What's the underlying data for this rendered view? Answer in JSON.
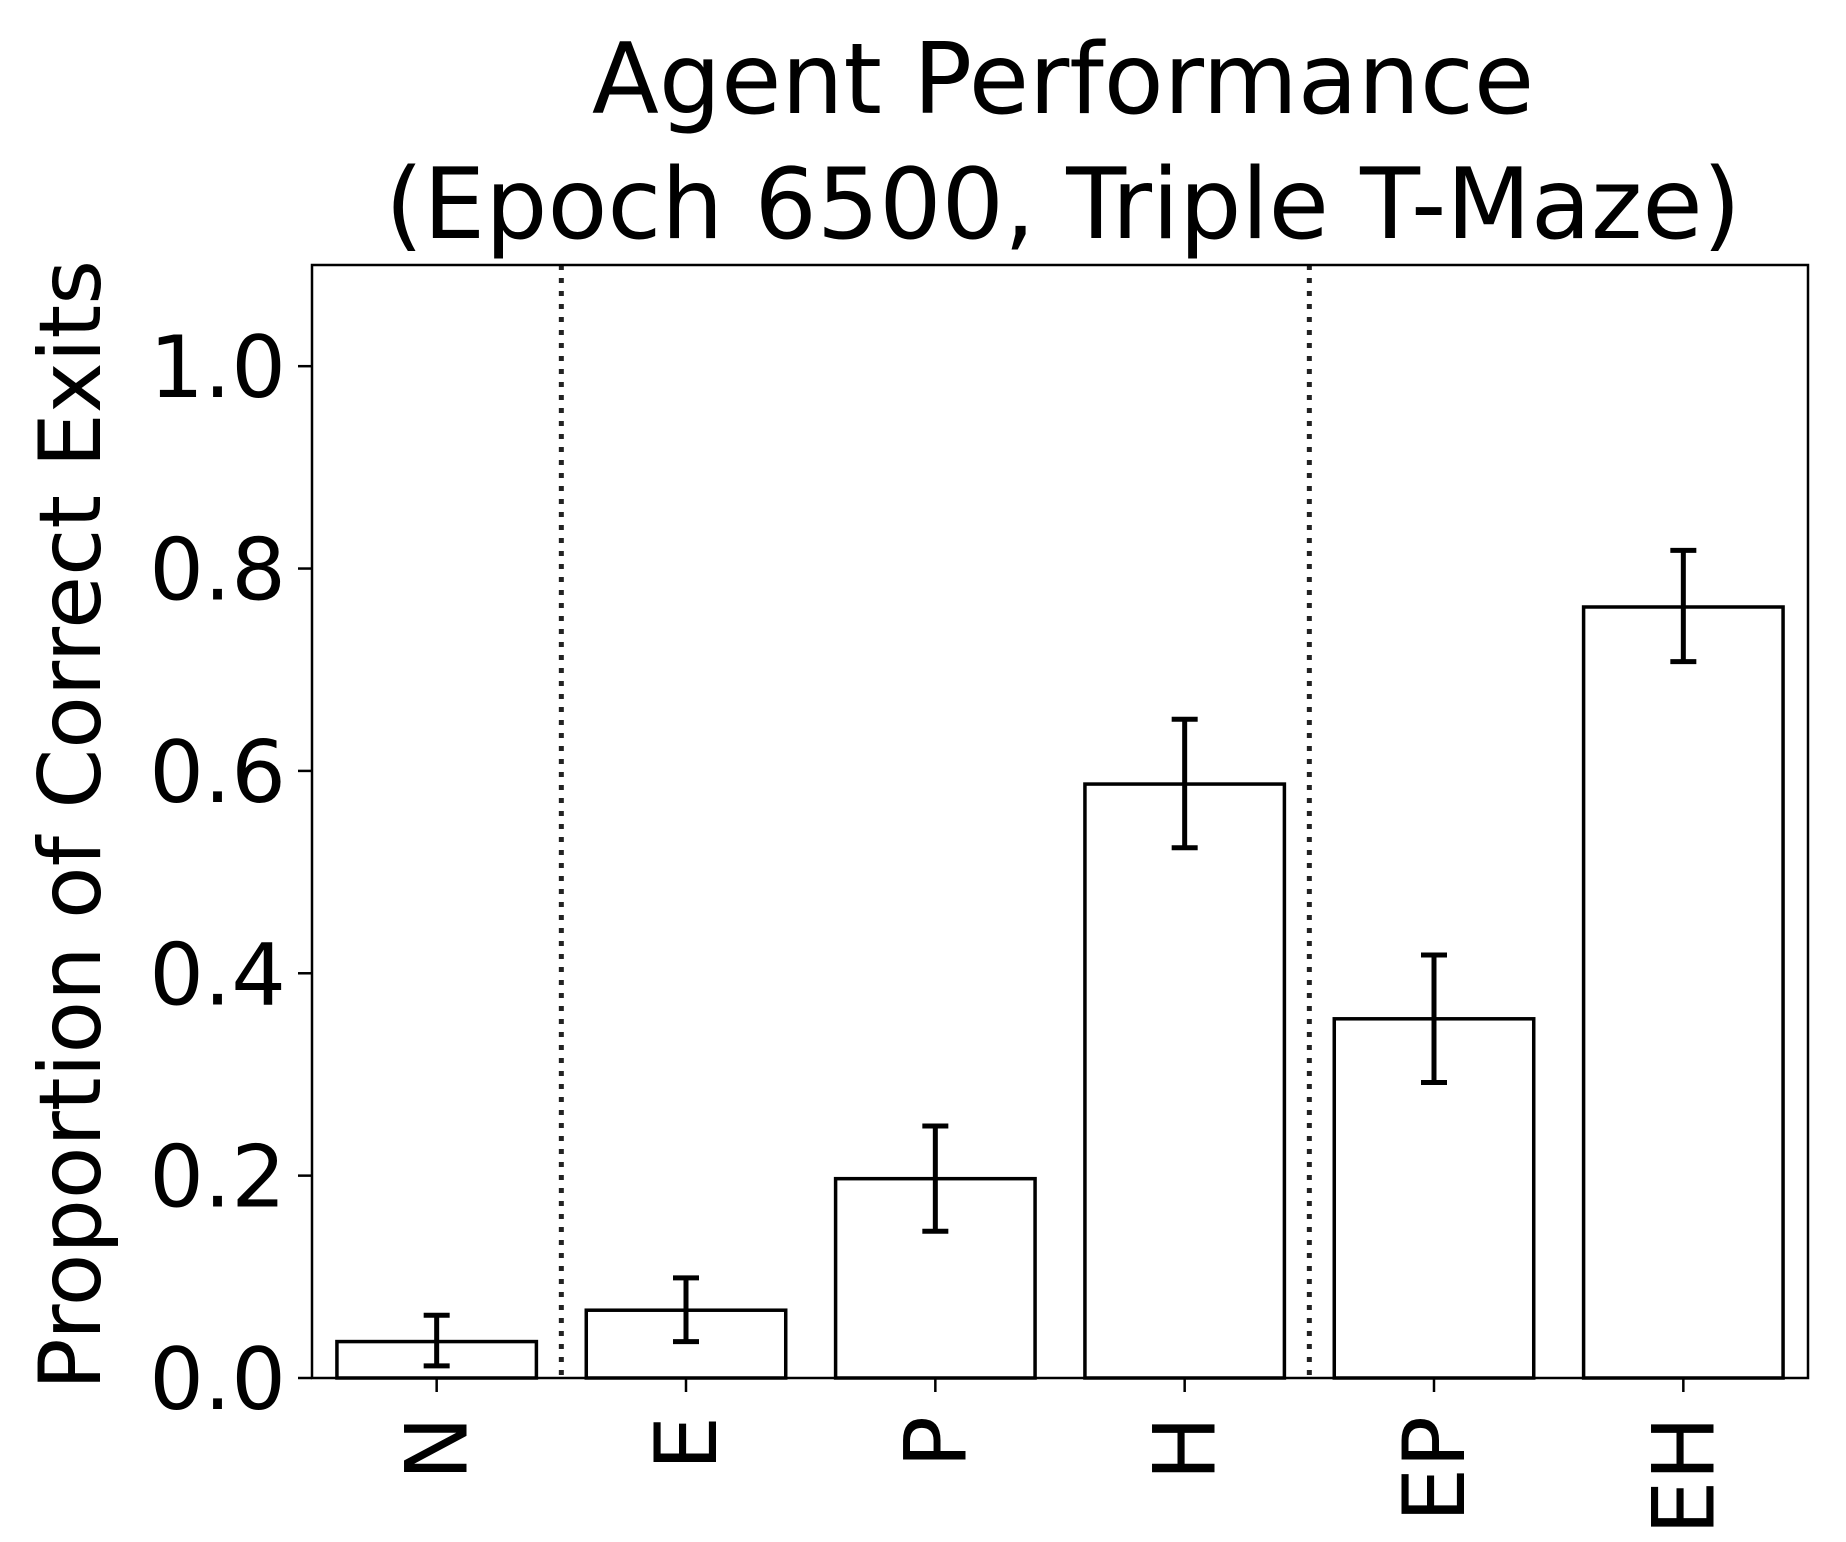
{
  "chart_data": {
    "type": "bar",
    "title_line1": "Agent Performance",
    "title_line2": "(Epoch 6500, Triple T-Maze)",
    "xlabel": "",
    "ylabel": "Proportion of Correct Exits",
    "ylim": [
      0,
      1.1
    ],
    "yticks": [
      {
        "value": 0.0,
        "label": "0.0"
      },
      {
        "value": 0.2,
        "label": "0.2"
      },
      {
        "value": 0.4,
        "label": "0.4"
      },
      {
        "value": 0.6,
        "label": "0.6"
      },
      {
        "value": 0.8,
        "label": "0.8"
      },
      {
        "value": 1.0,
        "label": "1.0"
      }
    ],
    "categories": [
      "N",
      "E",
      "P",
      "H",
      "EP",
      "EH"
    ],
    "values": [
      0.036,
      0.067,
      0.197,
      0.587,
      0.355,
      0.762
    ],
    "error_low": [
      0.012,
      0.036,
      0.145,
      0.524,
      0.292,
      0.708
    ],
    "error_high": [
      0.062,
      0.099,
      0.249,
      0.651,
      0.418,
      0.818
    ],
    "group_separators_after": [
      0,
      3
    ],
    "grid": false,
    "colors": {
      "bar_fill": "#ffffff",
      "bar_edge": "#000000",
      "error_bar": "#000000",
      "separator": "#222222"
    }
  }
}
